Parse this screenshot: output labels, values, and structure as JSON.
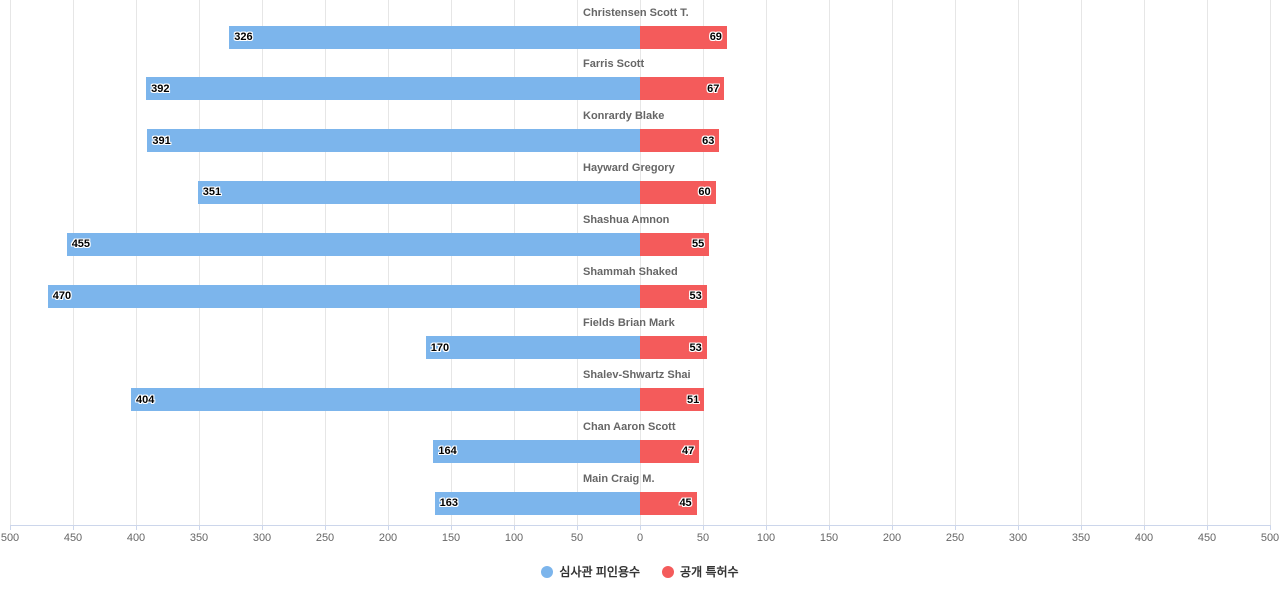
{
  "chart_data": {
    "type": "bar",
    "orientation": "horizontal-diverging",
    "title": "",
    "categories": [
      "Christensen Scott T.",
      "Farris Scott",
      "Konrardy Blake",
      "Hayward Gregory",
      "Shashua Amnon",
      "Shammah Shaked",
      "Fields Brian Mark",
      "Shalev-Shwartz Shai",
      "Chan Aaron Scott",
      "Main Craig M."
    ],
    "series": [
      {
        "name": "심사관 피인용수",
        "direction": "left",
        "color": "#7cb5ec",
        "values": [
          326,
          392,
          391,
          351,
          455,
          470,
          170,
          404,
          164,
          163
        ]
      },
      {
        "name": "공개 특허수",
        "direction": "right",
        "color": "#f45b5b",
        "values": [
          69,
          67,
          63,
          60,
          55,
          53,
          53,
          51,
          47,
          45
        ]
      }
    ],
    "xlim": [
      -500,
      500
    ],
    "tick_interval": 50,
    "axis_labels": [
      "500",
      "450",
      "400",
      "350",
      "300",
      "250",
      "200",
      "150",
      "100",
      "50",
      "0",
      "50",
      "100",
      "150",
      "200",
      "250",
      "300",
      "350",
      "400",
      "450",
      "500"
    ],
    "grid": true,
    "legend_position": "bottom-center",
    "colors": {
      "grid": "#e6e6e6",
      "axis_line": "#ccd6eb",
      "axis_label": "#666666",
      "category_label": "#666666",
      "value_label": "#000000",
      "background": "#ffffff"
    }
  },
  "legend": {
    "items": [
      {
        "label": "심사관 피인용수",
        "color": "#7cb5ec"
      },
      {
        "label": "공개 특허수",
        "color": "#f45b5b"
      }
    ]
  }
}
